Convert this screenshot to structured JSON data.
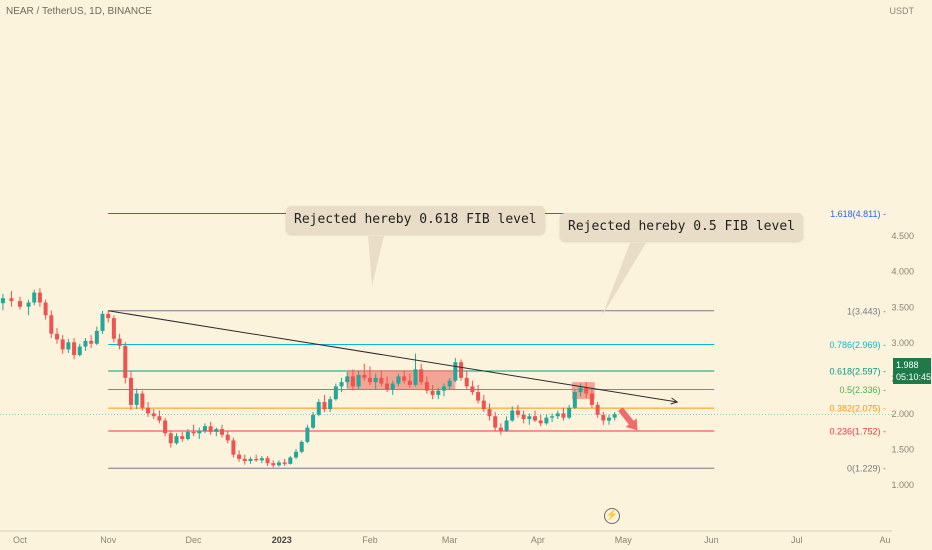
{
  "header": {
    "symbol": "NEAR / TetherUS, 1D, BINANCE",
    "unit": "USDT"
  },
  "last_price": {
    "value": "1.988",
    "countdown": "05:10:45"
  },
  "callouts": [
    {
      "text": "Rejected hereby 0.618 FIB level"
    },
    {
      "text": "Rejected hereby 0.5 FIB level"
    }
  ],
  "icons": {
    "replay": "lightning-icon"
  },
  "colors": {
    "background": "#fcf3dc",
    "up": "#26a69a",
    "down": "#ef5350",
    "zone": "#f08a7a",
    "trendline": "#2b2b2b",
    "arrow": "#f26b6b",
    "last_price_bg": "#1f7a4a"
  },
  "chart_data": {
    "type": "candlestick",
    "symbol": "NEAR / TetherUS",
    "interval": "1D",
    "exchange": "BINANCE",
    "y_axis": {
      "position": "right",
      "ticks": [
        1.0,
        1.5,
        2.0,
        2.5,
        3.0,
        3.5,
        4.0,
        4.5
      ],
      "tick_labels": [
        "1.000",
        "1.500",
        "2.000",
        "2.500",
        "3.000",
        "3.500",
        "4.000",
        "4.500"
      ],
      "range": [
        0.78,
        5.05
      ]
    },
    "x_axis": {
      "tick_labels": [
        "Oct",
        "Nov",
        "Dec",
        "2023",
        "Feb",
        "Mar",
        "Apr",
        "May",
        "Jun",
        "Jul",
        "Au"
      ],
      "tick_dates": [
        "2022-10-01",
        "2022-11-01",
        "2022-12-01",
        "2023-01-01",
        "2023-02-01",
        "2023-03-01",
        "2023-04-01",
        "2023-05-01",
        "2023-06-01",
        "2023-07-01",
        "2023-08-01"
      ],
      "range": [
        "2022-10-01",
        "2023-08-01"
      ]
    },
    "fib_levels": [
      {
        "ratio": "0",
        "price": 1.229,
        "label": "0(1.229)",
        "color": "#787b86"
      },
      {
        "ratio": "0.236",
        "price": 1.752,
        "label": "0.236(1.752)",
        "color": "#f23645"
      },
      {
        "ratio": "0.382",
        "price": 2.075,
        "label": "0.382(2.075)",
        "color": "#ff9800"
      },
      {
        "ratio": "0.5",
        "price": 2.336,
        "label": "0.5(2.336)",
        "color": "#4caf50"
      },
      {
        "ratio": "0.618",
        "price": 2.597,
        "label": "0.618(2.597)",
        "color": "#089981"
      },
      {
        "ratio": "0.786",
        "price": 2.969,
        "label": "0.786(2.969)",
        "color": "#00bcd4"
      },
      {
        "ratio": "1",
        "price": 3.443,
        "label": "1(3.443)",
        "color": "#787b86"
      },
      {
        "ratio": "1.618",
        "price": 4.811,
        "label": "1.618(4.811)",
        "color": "#2962ff"
      }
    ],
    "fib_range": {
      "start_date": "2022-11-01",
      "end_date": "2023-06-02"
    },
    "trendline": {
      "from": {
        "date": "2022-11-01",
        "price": 3.443
      },
      "to": {
        "date": "2023-05-20",
        "price": 2.16
      }
    },
    "rejection_zones": [
      {
        "date_from": "2023-01-24",
        "date_to": "2023-03-03",
        "price_low": 2.34,
        "price_high": 2.61
      },
      {
        "date_from": "2023-04-13",
        "date_to": "2023-04-21",
        "price_low": 2.2,
        "price_high": 2.44
      }
    ],
    "forecast_arrow": {
      "from": {
        "date": "2023-04-30",
        "price": 2.06
      },
      "to": {
        "date": "2023-05-06",
        "price": 1.76
      }
    },
    "last": {
      "price": 1.988,
      "countdown": "05:10:45"
    },
    "candles": [
      {
        "date": "2022-09-25",
        "open": 3.55,
        "high": 3.68,
        "low": 3.45,
        "close": 3.62
      },
      {
        "date": "2022-09-28",
        "open": 3.62,
        "high": 3.72,
        "low": 3.5,
        "close": 3.58
      },
      {
        "date": "2022-10-01",
        "open": 3.58,
        "high": 3.64,
        "low": 3.46,
        "close": 3.5
      },
      {
        "date": "2022-10-04",
        "open": 3.5,
        "high": 3.6,
        "low": 3.38,
        "close": 3.56
      },
      {
        "date": "2022-10-06",
        "open": 3.56,
        "high": 3.74,
        "low": 3.52,
        "close": 3.7
      },
      {
        "date": "2022-10-08",
        "open": 3.7,
        "high": 3.76,
        "low": 3.5,
        "close": 3.56
      },
      {
        "date": "2022-10-10",
        "open": 3.56,
        "high": 3.6,
        "low": 3.32,
        "close": 3.38
      },
      {
        "date": "2022-10-12",
        "open": 3.38,
        "high": 3.45,
        "low": 3.06,
        "close": 3.12
      },
      {
        "date": "2022-10-14",
        "open": 3.12,
        "high": 3.2,
        "low": 2.98,
        "close": 3.04
      },
      {
        "date": "2022-10-16",
        "open": 3.04,
        "high": 3.1,
        "low": 2.84,
        "close": 2.9
      },
      {
        "date": "2022-10-18",
        "open": 2.9,
        "high": 3.05,
        "low": 2.85,
        "close": 3.0
      },
      {
        "date": "2022-10-20",
        "open": 3.0,
        "high": 3.06,
        "low": 2.76,
        "close": 2.82
      },
      {
        "date": "2022-10-22",
        "open": 2.82,
        "high": 2.98,
        "low": 2.8,
        "close": 2.94
      },
      {
        "date": "2022-10-24",
        "open": 2.94,
        "high": 3.06,
        "low": 2.88,
        "close": 3.02
      },
      {
        "date": "2022-10-26",
        "open": 3.02,
        "high": 3.1,
        "low": 2.92,
        "close": 2.98
      },
      {
        "date": "2022-10-28",
        "open": 2.98,
        "high": 3.22,
        "low": 2.96,
        "close": 3.16
      },
      {
        "date": "2022-10-30",
        "open": 3.16,
        "high": 3.44,
        "low": 3.12,
        "close": 3.4
      },
      {
        "date": "2022-11-01",
        "open": 3.4,
        "high": 3.44,
        "low": 3.28,
        "close": 3.34
      },
      {
        "date": "2022-11-03",
        "open": 3.34,
        "high": 3.38,
        "low": 3.0,
        "close": 3.05
      },
      {
        "date": "2022-11-05",
        "open": 3.05,
        "high": 3.12,
        "low": 2.9,
        "close": 2.95
      },
      {
        "date": "2022-11-07",
        "open": 2.95,
        "high": 3.0,
        "low": 2.42,
        "close": 2.5
      },
      {
        "date": "2022-11-09",
        "open": 2.5,
        "high": 2.6,
        "low": 2.05,
        "close": 2.12
      },
      {
        "date": "2022-11-11",
        "open": 2.12,
        "high": 2.35,
        "low": 2.06,
        "close": 2.28
      },
      {
        "date": "2022-11-13",
        "open": 2.28,
        "high": 2.32,
        "low": 2.04,
        "close": 2.08
      },
      {
        "date": "2022-11-15",
        "open": 2.08,
        "high": 2.16,
        "low": 1.95,
        "close": 2.0
      },
      {
        "date": "2022-11-17",
        "open": 2.0,
        "high": 2.06,
        "low": 1.92,
        "close": 1.96
      },
      {
        "date": "2022-11-19",
        "open": 1.96,
        "high": 2.04,
        "low": 1.86,
        "close": 1.9
      },
      {
        "date": "2022-11-21",
        "open": 1.9,
        "high": 1.94,
        "low": 1.68,
        "close": 1.72
      },
      {
        "date": "2022-11-23",
        "open": 1.72,
        "high": 1.76,
        "low": 1.52,
        "close": 1.58
      },
      {
        "date": "2022-11-25",
        "open": 1.58,
        "high": 1.72,
        "low": 1.56,
        "close": 1.68
      },
      {
        "date": "2022-11-27",
        "open": 1.68,
        "high": 1.74,
        "low": 1.6,
        "close": 1.64
      },
      {
        "date": "2022-11-29",
        "open": 1.64,
        "high": 1.78,
        "low": 1.62,
        "close": 1.74
      },
      {
        "date": "2022-12-01",
        "open": 1.74,
        "high": 1.84,
        "low": 1.68,
        "close": 1.72
      },
      {
        "date": "2022-12-03",
        "open": 1.72,
        "high": 1.8,
        "low": 1.64,
        "close": 1.76
      },
      {
        "date": "2022-12-05",
        "open": 1.76,
        "high": 1.86,
        "low": 1.72,
        "close": 1.82
      },
      {
        "date": "2022-12-07",
        "open": 1.82,
        "high": 1.88,
        "low": 1.7,
        "close": 1.74
      },
      {
        "date": "2022-12-09",
        "open": 1.74,
        "high": 1.8,
        "low": 1.68,
        "close": 1.78
      },
      {
        "date": "2022-12-11",
        "open": 1.78,
        "high": 1.84,
        "low": 1.66,
        "close": 1.7
      },
      {
        "date": "2022-12-13",
        "open": 1.7,
        "high": 1.76,
        "low": 1.58,
        "close": 1.62
      },
      {
        "date": "2022-12-15",
        "open": 1.62,
        "high": 1.66,
        "low": 1.38,
        "close": 1.42
      },
      {
        "date": "2022-12-17",
        "open": 1.42,
        "high": 1.48,
        "low": 1.32,
        "close": 1.36
      },
      {
        "date": "2022-12-19",
        "open": 1.36,
        "high": 1.42,
        "low": 1.28,
        "close": 1.33
      },
      {
        "date": "2022-12-21",
        "open": 1.33,
        "high": 1.39,
        "low": 1.29,
        "close": 1.36
      },
      {
        "date": "2022-12-23",
        "open": 1.36,
        "high": 1.42,
        "low": 1.32,
        "close": 1.34
      },
      {
        "date": "2022-12-25",
        "open": 1.34,
        "high": 1.4,
        "low": 1.3,
        "close": 1.37
      },
      {
        "date": "2022-12-27",
        "open": 1.37,
        "high": 1.4,
        "low": 1.26,
        "close": 1.3
      },
      {
        "date": "2022-12-29",
        "open": 1.3,
        "high": 1.34,
        "low": 1.24,
        "close": 1.27
      },
      {
        "date": "2022-12-31",
        "open": 1.27,
        "high": 1.34,
        "low": 1.25,
        "close": 1.31
      },
      {
        "date": "2023-01-02",
        "open": 1.31,
        "high": 1.36,
        "low": 1.26,
        "close": 1.29
      },
      {
        "date": "2023-01-04",
        "open": 1.29,
        "high": 1.4,
        "low": 1.28,
        "close": 1.38
      },
      {
        "date": "2023-01-06",
        "open": 1.38,
        "high": 1.5,
        "low": 1.36,
        "close": 1.46
      },
      {
        "date": "2023-01-08",
        "open": 1.46,
        "high": 1.62,
        "low": 1.44,
        "close": 1.6
      },
      {
        "date": "2023-01-10",
        "open": 1.6,
        "high": 1.84,
        "low": 1.58,
        "close": 1.8
      },
      {
        "date": "2023-01-12",
        "open": 1.8,
        "high": 2.02,
        "low": 1.78,
        "close": 1.98
      },
      {
        "date": "2023-01-14",
        "open": 1.98,
        "high": 2.2,
        "low": 1.96,
        "close": 2.16
      },
      {
        "date": "2023-01-16",
        "open": 2.16,
        "high": 2.26,
        "low": 2.02,
        "close": 2.06
      },
      {
        "date": "2023-01-18",
        "open": 2.06,
        "high": 2.24,
        "low": 2.02,
        "close": 2.2
      },
      {
        "date": "2023-01-20",
        "open": 2.2,
        "high": 2.42,
        "low": 2.18,
        "close": 2.38
      },
      {
        "date": "2023-01-22",
        "open": 2.38,
        "high": 2.5,
        "low": 2.3,
        "close": 2.44
      },
      {
        "date": "2023-01-24",
        "open": 2.44,
        "high": 2.58,
        "low": 2.36,
        "close": 2.52
      },
      {
        "date": "2023-01-26",
        "open": 2.52,
        "high": 2.62,
        "low": 2.32,
        "close": 2.38
      },
      {
        "date": "2023-01-28",
        "open": 2.38,
        "high": 2.6,
        "low": 2.34,
        "close": 2.54
      },
      {
        "date": "2023-01-30",
        "open": 2.54,
        "high": 2.7,
        "low": 2.46,
        "close": 2.5
      },
      {
        "date": "2023-02-01",
        "open": 2.5,
        "high": 2.66,
        "low": 2.4,
        "close": 2.44
      },
      {
        "date": "2023-02-03",
        "open": 2.44,
        "high": 2.56,
        "low": 2.34,
        "close": 2.5
      },
      {
        "date": "2023-02-05",
        "open": 2.5,
        "high": 2.6,
        "low": 2.38,
        "close": 2.42
      },
      {
        "date": "2023-02-07",
        "open": 2.42,
        "high": 2.52,
        "low": 2.3,
        "close": 2.34
      },
      {
        "date": "2023-02-09",
        "open": 2.34,
        "high": 2.46,
        "low": 2.26,
        "close": 2.42
      },
      {
        "date": "2023-02-11",
        "open": 2.42,
        "high": 2.56,
        "low": 2.38,
        "close": 2.52
      },
      {
        "date": "2023-02-13",
        "open": 2.52,
        "high": 2.6,
        "low": 2.42,
        "close": 2.46
      },
      {
        "date": "2023-02-15",
        "open": 2.46,
        "high": 2.56,
        "low": 2.36,
        "close": 2.4
      },
      {
        "date": "2023-02-17",
        "open": 2.4,
        "high": 2.84,
        "low": 2.38,
        "close": 2.62
      },
      {
        "date": "2023-02-19",
        "open": 2.62,
        "high": 2.7,
        "low": 2.4,
        "close": 2.44
      },
      {
        "date": "2023-02-21",
        "open": 2.44,
        "high": 2.52,
        "low": 2.28,
        "close": 2.32
      },
      {
        "date": "2023-02-23",
        "open": 2.32,
        "high": 2.4,
        "low": 2.2,
        "close": 2.26
      },
      {
        "date": "2023-02-25",
        "open": 2.26,
        "high": 2.36,
        "low": 2.2,
        "close": 2.32
      },
      {
        "date": "2023-02-27",
        "open": 2.32,
        "high": 2.42,
        "low": 2.24,
        "close": 2.38
      },
      {
        "date": "2023-03-01",
        "open": 2.38,
        "high": 2.5,
        "low": 2.34,
        "close": 2.46
      },
      {
        "date": "2023-03-03",
        "open": 2.46,
        "high": 2.78,
        "low": 2.44,
        "close": 2.72
      },
      {
        "date": "2023-03-05",
        "open": 2.72,
        "high": 2.76,
        "low": 2.46,
        "close": 2.5
      },
      {
        "date": "2023-03-07",
        "open": 2.5,
        "high": 2.6,
        "low": 2.34,
        "close": 2.38
      },
      {
        "date": "2023-03-09",
        "open": 2.38,
        "high": 2.46,
        "low": 2.26,
        "close": 2.3
      },
      {
        "date": "2023-03-11",
        "open": 2.3,
        "high": 2.4,
        "low": 2.14,
        "close": 2.18
      },
      {
        "date": "2023-03-13",
        "open": 2.18,
        "high": 2.26,
        "low": 2.02,
        "close": 2.06
      },
      {
        "date": "2023-03-15",
        "open": 2.06,
        "high": 2.14,
        "low": 1.9,
        "close": 1.96
      },
      {
        "date": "2023-03-17",
        "open": 1.96,
        "high": 2.02,
        "low": 1.76,
        "close": 1.8
      },
      {
        "date": "2023-03-19",
        "open": 1.8,
        "high": 1.86,
        "low": 1.7,
        "close": 1.76
      },
      {
        "date": "2023-03-21",
        "open": 1.76,
        "high": 1.96,
        "low": 1.74,
        "close": 1.9
      },
      {
        "date": "2023-03-23",
        "open": 1.9,
        "high": 2.1,
        "low": 1.88,
        "close": 2.04
      },
      {
        "date": "2023-03-25",
        "open": 2.04,
        "high": 2.12,
        "low": 1.94,
        "close": 1.98
      },
      {
        "date": "2023-03-27",
        "open": 1.98,
        "high": 2.04,
        "low": 1.86,
        "close": 1.92
      },
      {
        "date": "2023-03-29",
        "open": 1.92,
        "high": 2.0,
        "low": 1.84,
        "close": 1.96
      },
      {
        "date": "2023-03-31",
        "open": 1.96,
        "high": 2.04,
        "low": 1.88,
        "close": 1.9
      },
      {
        "date": "2023-04-02",
        "open": 1.9,
        "high": 1.98,
        "low": 1.82,
        "close": 1.86
      },
      {
        "date": "2023-04-04",
        "open": 1.86,
        "high": 1.98,
        "low": 1.84,
        "close": 1.94
      },
      {
        "date": "2023-04-06",
        "open": 1.94,
        "high": 2.0,
        "low": 1.88,
        "close": 1.96
      },
      {
        "date": "2023-04-08",
        "open": 1.96,
        "high": 2.04,
        "low": 1.92,
        "close": 2.0
      },
      {
        "date": "2023-04-10",
        "open": 2.0,
        "high": 2.08,
        "low": 1.9,
        "close": 1.94
      },
      {
        "date": "2023-04-12",
        "open": 1.94,
        "high": 2.12,
        "low": 1.92,
        "close": 2.08
      },
      {
        "date": "2023-04-14",
        "open": 2.08,
        "high": 2.34,
        "low": 2.06,
        "close": 2.3
      },
      {
        "date": "2023-04-16",
        "open": 2.3,
        "high": 2.42,
        "low": 2.24,
        "close": 2.36
      },
      {
        "date": "2023-04-18",
        "open": 2.36,
        "high": 2.44,
        "low": 2.22,
        "close": 2.28
      },
      {
        "date": "2023-04-20",
        "open": 2.28,
        "high": 2.36,
        "low": 2.08,
        "close": 2.12
      },
      {
        "date": "2023-04-22",
        "open": 2.12,
        "high": 2.16,
        "low": 1.94,
        "close": 1.98
      },
      {
        "date": "2023-04-24",
        "open": 1.98,
        "high": 2.02,
        "low": 1.84,
        "close": 1.9
      },
      {
        "date": "2023-04-26",
        "open": 1.9,
        "high": 1.98,
        "low": 1.84,
        "close": 1.94
      },
      {
        "date": "2023-04-28",
        "open": 1.94,
        "high": 2.02,
        "low": 1.9,
        "close": 1.988
      }
    ]
  }
}
